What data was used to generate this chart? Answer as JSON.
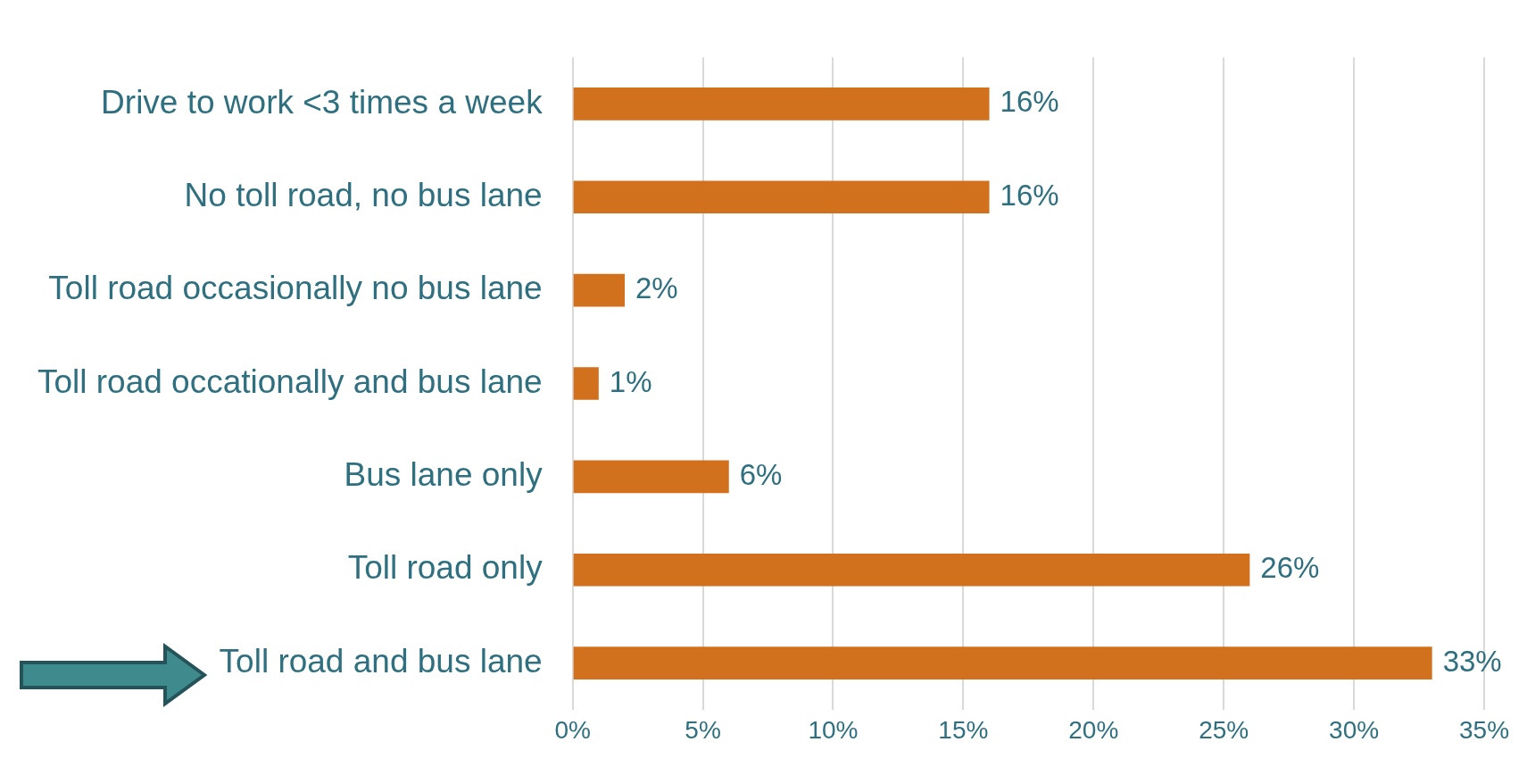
{
  "chart_data": {
    "type": "bar",
    "orientation": "horizontal",
    "categories": [
      "Drive to work <3 times a week",
      "No toll road, no bus lane",
      "Toll road occasionally no bus lane",
      "Toll road occationally and bus lane",
      "Bus lane only",
      "Toll road only",
      "Toll road and bus lane"
    ],
    "values": [
      16,
      16,
      2,
      1,
      6,
      26,
      33
    ],
    "value_labels": [
      "16%",
      "16%",
      "2%",
      "1%",
      "6%",
      "26%",
      "33%"
    ],
    "color": "#d2711d",
    "xlim": [
      0,
      35
    ],
    "xticks": [
      {
        "value": 0,
        "label": "0%"
      },
      {
        "value": 5,
        "label": "5%"
      },
      {
        "value": 10,
        "label": "10%"
      },
      {
        "value": 15,
        "label": "15%"
      },
      {
        "value": 20,
        "label": "20%"
      },
      {
        "value": 25,
        "label": "25%"
      },
      {
        "value": 30,
        "label": "30%"
      },
      {
        "value": 35,
        "label": "35%"
      }
    ],
    "grid": "x"
  }
}
